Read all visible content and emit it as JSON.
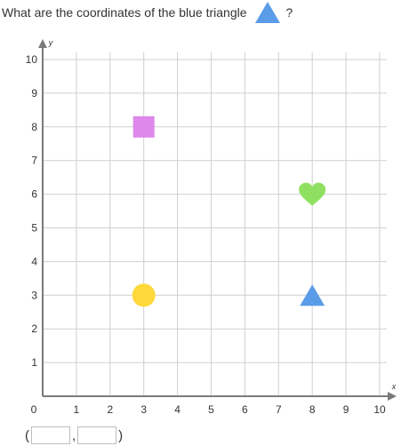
{
  "question": {
    "text_before": "What are the coordinates of the blue triangle",
    "text_after": "?",
    "icon": "blue-triangle-icon",
    "icon_color": "#5b9ce8"
  },
  "chart_data": {
    "type": "scatter",
    "xlabel": "x",
    "ylabel": "y",
    "xlim": [
      0,
      10
    ],
    "ylim": [
      0,
      10
    ],
    "x_ticks": [
      "0",
      "1",
      "2",
      "3",
      "4",
      "5",
      "6",
      "7",
      "8",
      "9",
      "10"
    ],
    "y_ticks": [
      "1",
      "2",
      "3",
      "4",
      "5",
      "6",
      "7",
      "8",
      "9",
      "10"
    ],
    "grid": true,
    "points": [
      {
        "shape": "square",
        "color": "#dd88ea",
        "x": 3,
        "y": 8
      },
      {
        "shape": "heart",
        "color": "#8fe060",
        "x": 8,
        "y": 6
      },
      {
        "shape": "circle",
        "color": "#ffd83a",
        "x": 3,
        "y": 3
      },
      {
        "shape": "triangle",
        "color": "#5b9ce8",
        "x": 8,
        "y": 3
      }
    ]
  },
  "answer": {
    "open_paren": "(",
    "comma": ",",
    "close_paren": ")",
    "x_value": "",
    "y_value": ""
  }
}
